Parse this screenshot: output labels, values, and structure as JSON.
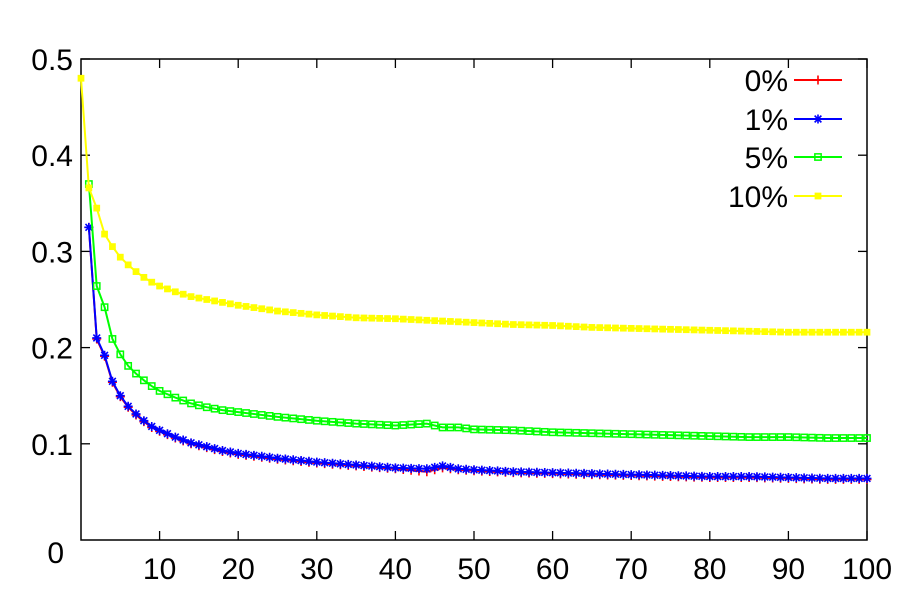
{
  "chart_data": {
    "type": "line",
    "title": "",
    "xlabel": "",
    "ylabel": "",
    "xlim": [
      0,
      100
    ],
    "ylim": [
      0,
      0.5
    ],
    "x_ticks": [
      10,
      20,
      30,
      40,
      50,
      60,
      70,
      80,
      90,
      100
    ],
    "y_ticks": [
      0,
      0.1,
      0.2,
      0.3,
      0.4,
      0.5
    ],
    "x_tick_labels": [
      "10",
      "20",
      "30",
      "40",
      "50",
      "60",
      "70",
      "80",
      "90",
      "100"
    ],
    "y_tick_labels": [
      "0",
      "0.1",
      "0.2",
      "0.3",
      "0.4",
      "0.5"
    ],
    "grid": false,
    "legend_position": "top-right",
    "series": [
      {
        "name": "0%",
        "color": "#ff0000",
        "marker": "plus",
        "x": [
          1,
          2,
          3,
          4,
          5,
          6,
          7,
          8,
          9,
          10,
          12,
          14,
          16,
          18,
          20,
          25,
          30,
          35,
          40,
          44,
          46,
          48,
          50,
          55,
          60,
          65,
          70,
          75,
          80,
          85,
          90,
          95,
          100
        ],
        "y": [
          0.325,
          0.209,
          0.191,
          0.164,
          0.149,
          0.138,
          0.13,
          0.123,
          0.117,
          0.113,
          0.106,
          0.1,
          0.096,
          0.092,
          0.089,
          0.084,
          0.08,
          0.077,
          0.074,
          0.071,
          0.075,
          0.073,
          0.072,
          0.07,
          0.069,
          0.068,
          0.067,
          0.066,
          0.065,
          0.065,
          0.064,
          0.063,
          0.063
        ]
      },
      {
        "name": "1%",
        "color": "#0000ff",
        "marker": "x",
        "x": [
          1,
          2,
          3,
          4,
          5,
          6,
          7,
          8,
          9,
          10,
          12,
          14,
          16,
          18,
          20,
          25,
          30,
          35,
          40,
          44,
          46,
          48,
          50,
          55,
          60,
          65,
          70,
          75,
          80,
          85,
          90,
          95,
          100
        ],
        "y": [
          0.325,
          0.21,
          0.192,
          0.165,
          0.15,
          0.139,
          0.131,
          0.124,
          0.118,
          0.114,
          0.107,
          0.101,
          0.097,
          0.093,
          0.09,
          0.085,
          0.081,
          0.078,
          0.075,
          0.074,
          0.077,
          0.074,
          0.073,
          0.071,
          0.07,
          0.069,
          0.068,
          0.067,
          0.066,
          0.066,
          0.065,
          0.064,
          0.064
        ]
      },
      {
        "name": "5%",
        "color": "#00ff00",
        "marker": "open-square",
        "x": [
          1,
          2,
          3,
          4,
          5,
          6,
          7,
          8,
          9,
          10,
          12,
          14,
          16,
          18,
          20,
          25,
          30,
          35,
          40,
          44,
          46,
          48,
          50,
          55,
          60,
          65,
          70,
          75,
          80,
          85,
          90,
          95,
          100
        ],
        "y": [
          0.37,
          0.264,
          0.242,
          0.209,
          0.193,
          0.181,
          0.173,
          0.166,
          0.16,
          0.155,
          0.148,
          0.142,
          0.138,
          0.135,
          0.133,
          0.128,
          0.124,
          0.121,
          0.119,
          0.121,
          0.117,
          0.117,
          0.115,
          0.114,
          0.112,
          0.111,
          0.11,
          0.109,
          0.108,
          0.107,
          0.107,
          0.106,
          0.106
        ]
      },
      {
        "name": "10%",
        "color": "#ffff00",
        "marker": "filled-square",
        "x": [
          0,
          1,
          2,
          3,
          4,
          5,
          6,
          7,
          8,
          9,
          10,
          12,
          14,
          16,
          18,
          20,
          25,
          30,
          35,
          40,
          45,
          50,
          55,
          60,
          65,
          70,
          75,
          80,
          85,
          90,
          95,
          100
        ],
        "y": [
          0.48,
          0.366,
          0.345,
          0.318,
          0.305,
          0.294,
          0.286,
          0.279,
          0.273,
          0.268,
          0.264,
          0.258,
          0.253,
          0.25,
          0.247,
          0.244,
          0.238,
          0.234,
          0.231,
          0.23,
          0.228,
          0.226,
          0.224,
          0.223,
          0.221,
          0.22,
          0.219,
          0.218,
          0.217,
          0.216,
          0.216,
          0.216
        ]
      }
    ]
  }
}
